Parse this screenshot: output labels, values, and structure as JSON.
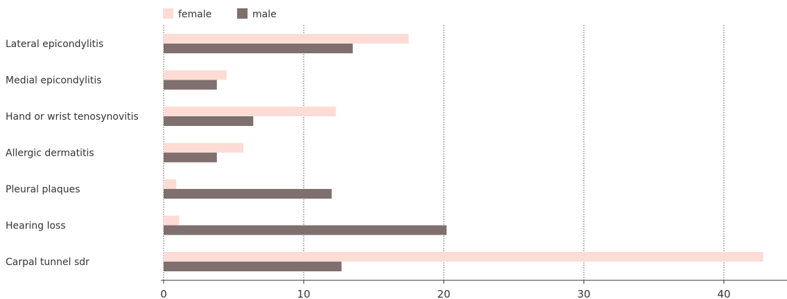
{
  "chart_data": {
    "type": "bar",
    "orientation": "horizontal",
    "categories": [
      "Lateral epicondylitis",
      "Medial epicondylitis",
      "Hand or wrist tenosynovitis",
      "Allergic dermatitis",
      "Pleural plaques",
      "Hearing loss",
      "Carpal tunnel sdr"
    ],
    "series": [
      {
        "name": "female",
        "color": "#fddcd5",
        "values": [
          17.5,
          4.5,
          12.3,
          5.7,
          0.9,
          1.1,
          42.8
        ]
      },
      {
        "name": "male",
        "color": "#7f6f6f",
        "values": [
          13.5,
          3.8,
          6.4,
          3.8,
          12.0,
          20.2,
          12.7
        ]
      }
    ],
    "xlim": [
      0,
      45
    ],
    "xticks": [
      0,
      10,
      20,
      30,
      40
    ],
    "grid": "vertical dotted",
    "legend": "top-left",
    "title": "",
    "xlabel": "",
    "ylabel": ""
  }
}
